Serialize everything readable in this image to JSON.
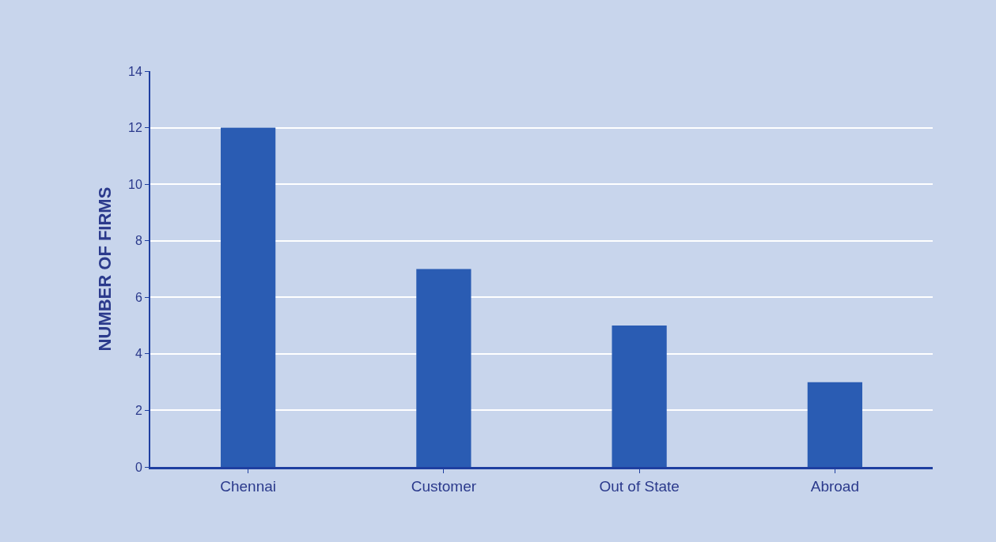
{
  "chart_data": {
    "type": "bar",
    "ylabel": "NUMBER OF FIRMS",
    "categories": [
      "Chennai",
      "Customer",
      "Out of State",
      "Abroad"
    ],
    "values": [
      12,
      7,
      5,
      3
    ],
    "color": "#2a5cb3",
    "ylim": [
      0,
      14
    ],
    "yticks": [
      0,
      2,
      4,
      6,
      8,
      10,
      12,
      14
    ],
    "grid": "y"
  }
}
